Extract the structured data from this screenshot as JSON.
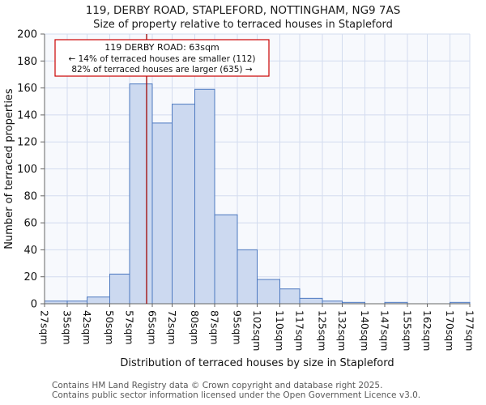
{
  "chart_data": {
    "type": "bar",
    "title": "119, DERBY ROAD, STAPLEFORD, NOTTINGHAM, NG9 7AS",
    "subtitle": "Size of property relative to terraced houses in Stapleford",
    "xlabel": "Distribution of terraced houses by size in Stapleford",
    "ylabel": "Number of terraced properties",
    "bin_edges_sqm": [
      27,
      35,
      42,
      50,
      57,
      65,
      72,
      80,
      87,
      95,
      102,
      110,
      117,
      125,
      132,
      140,
      147,
      155,
      162,
      170,
      177
    ],
    "tick_labels": [
      "27sqm",
      "35sqm",
      "42sqm",
      "50sqm",
      "57sqm",
      "65sqm",
      "72sqm",
      "80sqm",
      "87sqm",
      "95sqm",
      "102sqm",
      "110sqm",
      "117sqm",
      "125sqm",
      "132sqm",
      "140sqm",
      "147sqm",
      "155sqm",
      "162sqm",
      "170sqm",
      "177sqm"
    ],
    "values": [
      2,
      2,
      5,
      22,
      163,
      134,
      148,
      159,
      66,
      40,
      18,
      11,
      4,
      2,
      1,
      0,
      1,
      0,
      0,
      1
    ],
    "ylim": [
      0,
      200
    ],
    "ytick_step": 20,
    "ytick_labels": [
      "0",
      "20",
      "40",
      "60",
      "80",
      "100",
      "120",
      "140",
      "160",
      "180",
      "200"
    ],
    "marker_value_sqm": 63,
    "grid": true,
    "annotation": {
      "line1": "119 DERBY ROAD: 63sqm",
      "line2": "← 14% of terraced houses are smaller (112)",
      "line3": "82% of terraced houses are larger (635) →"
    },
    "colors": {
      "bar_fill": "#ccd9f0",
      "bar_stroke": "#4d79c0",
      "marker_line": "#a31515",
      "grid": "#d3dcef",
      "annotation_border": "#cc0000",
      "plot_bg": "#f7f9fd",
      "axis": "#666666",
      "text": "#111111"
    }
  },
  "footer": {
    "line1": "Contains HM Land Registry data © Crown copyright and database right 2025.",
    "line2": "Contains public sector information licensed under the Open Government Licence v3.0."
  }
}
